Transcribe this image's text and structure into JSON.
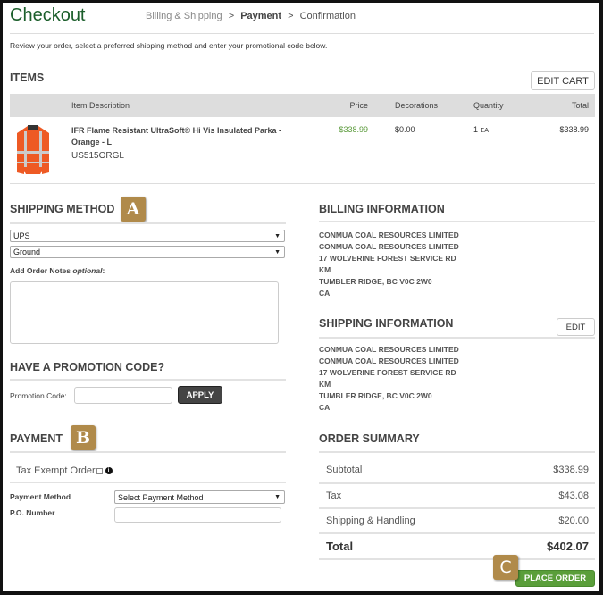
{
  "header": {
    "title": "Checkout",
    "breadcrumb": [
      "Billing & Shipping",
      "Payment",
      "Confirmation"
    ],
    "separator": ">"
  },
  "intro": "Review your order, select a preferred shipping method and enter your promotional code below.",
  "items": {
    "heading": "ITEMS",
    "edit_cart": "EDIT CART",
    "columns": [
      "Item Description",
      "Price",
      "Decorations",
      "Quantity",
      "Total"
    ],
    "rows": [
      {
        "name_line1": "IFR Flame Resistant UltraSoft® Hi Vis Insulated Parka -",
        "name_line2": "Orange - L",
        "sku": "US515ORGL",
        "price": "$338.99",
        "decorations": "$0.00",
        "quantity": "1",
        "unit": "EA",
        "total": "$338.99"
      }
    ]
  },
  "shipping_method": {
    "heading": "SHIPPING METHOD",
    "badge": "A",
    "carrier": "UPS",
    "service": "Ground",
    "notes_label": "Add Order Notes ",
    "notes_optional": "optional",
    "notes_colon": ":"
  },
  "promo": {
    "heading": "HAVE A PROMOTION CODE?",
    "label": "Promotion Code:",
    "apply": "APPLY"
  },
  "payment": {
    "heading": "PAYMENT",
    "badge": "B",
    "tax_exempt": "Tax Exempt Order",
    "method_label": "Payment Method",
    "method_value": "Select Payment Method",
    "po_label": "P.O. Number"
  },
  "billing": {
    "heading": "BILLING INFORMATION",
    "lines": [
      "CONMUA COAL RESOURCES LIMITED",
      "CONMUA COAL RESOURCES LIMITED",
      "17 WOLVERINE FOREST SERVICE RD",
      "KM",
      "TUMBLER RIDGE, BC V0C 2W0",
      "CA"
    ]
  },
  "shipping_info": {
    "heading": "SHIPPING INFORMATION",
    "edit": "EDIT",
    "lines": [
      "CONMUA COAL RESOURCES LIMITED",
      "CONMUA COAL RESOURCES LIMITED",
      "17 WOLVERINE FOREST SERVICE RD",
      "KM",
      "TUMBLER RIDGE, BC V0C 2W0",
      "CA"
    ]
  },
  "summary": {
    "heading": "ORDER SUMMARY",
    "subtotal_label": "Subtotal",
    "subtotal": "$338.99",
    "tax_label": "Tax",
    "tax": "$43.08",
    "shipping_label": "Shipping & Handling",
    "shipping": "$20.00",
    "total_label": "Total",
    "total": "$402.07",
    "badge": "C",
    "place_order": "PLACE ORDER"
  },
  "colors": {
    "title": "#1b5e2b",
    "price": "#5a9a3a",
    "badge": "#b08a4a",
    "place_order": "#5a9e3a",
    "apply": "#444444"
  }
}
